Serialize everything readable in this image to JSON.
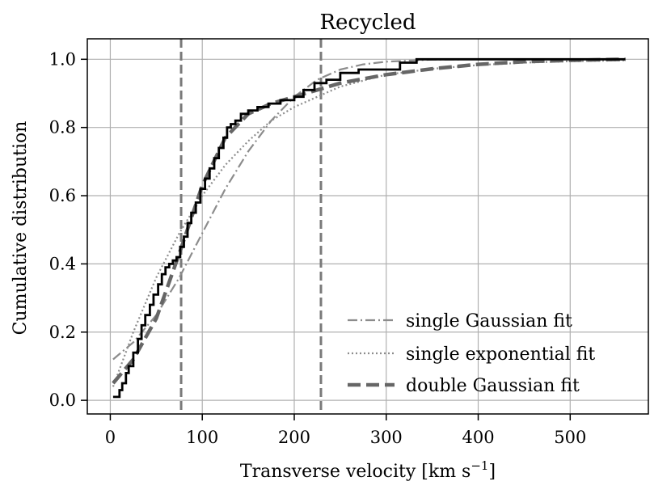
{
  "chart_data": {
    "type": "line",
    "title": "Recycled",
    "xlabel": "Transverse velocity [km s",
    "xlabel_sup": "−1",
    "xlabel_end": "]",
    "ylabel": "Cumulative distribution",
    "xlim": [
      -25,
      585
    ],
    "ylim": [
      -0.04,
      1.06
    ],
    "xticks": [
      0,
      100,
      200,
      300,
      400,
      500
    ],
    "yticks": [
      0.0,
      0.2,
      0.4,
      0.6,
      0.8,
      1.0
    ],
    "ytick_labels": [
      "0.0",
      "0.2",
      "0.4",
      "0.6",
      "0.8",
      "1.0"
    ],
    "grid": true,
    "legend_position": "lower-right",
    "vertical_lines": [
      77,
      229
    ],
    "empirical": {
      "x": [
        3,
        10,
        13,
        17,
        20,
        25,
        30,
        34,
        38,
        43,
        47,
        52,
        56,
        60,
        64,
        68,
        72,
        76,
        80,
        84,
        88,
        93,
        98,
        103,
        108,
        113,
        118,
        123,
        127,
        131,
        136,
        142,
        150,
        160,
        172,
        185,
        200,
        210,
        222,
        235,
        250,
        270,
        295,
        315,
        333,
        380,
        450,
        560
      ],
      "y": [
        0.01,
        0.03,
        0.05,
        0.08,
        0.1,
        0.14,
        0.18,
        0.22,
        0.25,
        0.28,
        0.31,
        0.34,
        0.37,
        0.39,
        0.4,
        0.41,
        0.42,
        0.45,
        0.48,
        0.52,
        0.55,
        0.58,
        0.62,
        0.65,
        0.68,
        0.71,
        0.74,
        0.77,
        0.8,
        0.81,
        0.82,
        0.84,
        0.85,
        0.86,
        0.87,
        0.88,
        0.89,
        0.91,
        0.93,
        0.94,
        0.96,
        0.97,
        0.97,
        0.99,
        1.0,
        1.0,
        1.0,
        1.0
      ]
    },
    "series": [
      {
        "name": "single Gaussian fit",
        "style": "dashdot",
        "color": "#8c8c8c",
        "x": [
          3,
          25,
          50,
          75,
          100,
          125,
          150,
          175,
          200,
          225,
          250,
          275,
          300,
          350,
          400,
          560
        ],
        "y": [
          0.12,
          0.17,
          0.25,
          0.36,
          0.49,
          0.62,
          0.73,
          0.82,
          0.89,
          0.94,
          0.97,
          0.985,
          0.993,
          0.999,
          1.0,
          1.0
        ]
      },
      {
        "name": "single exponential fit",
        "style": "dotted",
        "color": "#8c8c8c",
        "x": [
          3,
          25,
          50,
          75,
          100,
          125,
          150,
          175,
          200,
          250,
          300,
          350,
          400,
          450,
          500,
          560
        ],
        "y": [
          0.04,
          0.2,
          0.36,
          0.49,
          0.6,
          0.69,
          0.76,
          0.82,
          0.86,
          0.92,
          0.955,
          0.972,
          0.983,
          0.99,
          0.994,
          0.997
        ]
      },
      {
        "name": "double Gaussian fit",
        "style": "dashed",
        "color": "#666666",
        "x": [
          3,
          25,
          50,
          75,
          100,
          125,
          150,
          175,
          200,
          225,
          250,
          300,
          350,
          400,
          450,
          500,
          560
        ],
        "y": [
          0.05,
          0.12,
          0.24,
          0.43,
          0.63,
          0.77,
          0.84,
          0.87,
          0.89,
          0.91,
          0.93,
          0.955,
          0.972,
          0.985,
          0.993,
          0.997,
          1.0
        ]
      }
    ]
  }
}
